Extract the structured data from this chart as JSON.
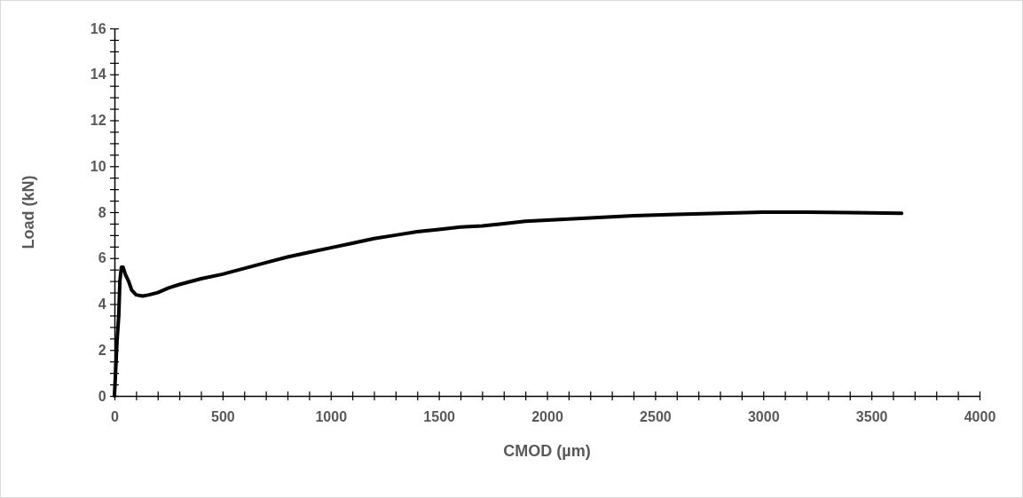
{
  "chart_data": {
    "type": "line",
    "xlabel": "CMOD (µm)",
    "ylabel": "Load (kN)",
    "xlim": [
      0,
      4000
    ],
    "ylim": [
      0,
      16
    ],
    "xticks": [
      0,
      {
        "value": 100,
        "label": null
      },
      {
        "value": 200,
        "label": null
      },
      {
        "value": 300,
        "label": null
      },
      {
        "value": 400,
        "label": null
      },
      500,
      {
        "value": 600,
        "label": null
      },
      {
        "value": 700,
        "label": null
      },
      {
        "value": 800,
        "label": null
      },
      {
        "value": 900,
        "label": null
      },
      1000,
      {
        "value": 1100,
        "label": null
      },
      {
        "value": 1200,
        "label": null
      },
      {
        "value": 1300,
        "label": null
      },
      {
        "value": 1400,
        "label": null
      },
      1500,
      {
        "value": 1600,
        "label": null
      },
      {
        "value": 1700,
        "label": null
      },
      {
        "value": 1800,
        "label": null
      },
      {
        "value": 1900,
        "label": null
      },
      2000,
      {
        "value": 2100,
        "label": null
      },
      {
        "value": 2200,
        "label": null
      },
      {
        "value": 2300,
        "label": null
      },
      {
        "value": 2400,
        "label": null
      },
      2500,
      {
        "value": 2600,
        "label": null
      },
      {
        "value": 2700,
        "label": null
      },
      {
        "value": 2800,
        "label": null
      },
      {
        "value": 2900,
        "label": null
      },
      3000,
      {
        "value": 3100,
        "label": null
      },
      {
        "value": 3200,
        "label": null
      },
      {
        "value": 3300,
        "label": null
      },
      {
        "value": 3400,
        "label": null
      },
      3500,
      {
        "value": 3600,
        "label": null
      },
      {
        "value": 3700,
        "label": null
      },
      {
        "value": 3800,
        "label": null
      },
      {
        "value": 3900,
        "label": null
      },
      4000
    ],
    "yticks": [
      0,
      {
        "value": 0.5,
        "label": null
      },
      {
        "value": 1,
        "label": null
      },
      {
        "value": 1.5,
        "label": null
      },
      2,
      {
        "value": 2.5,
        "label": null
      },
      {
        "value": 3,
        "label": null
      },
      {
        "value": 3.5,
        "label": null
      },
      4,
      {
        "value": 4.5,
        "label": null
      },
      {
        "value": 5,
        "label": null
      },
      {
        "value": 5.5,
        "label": null
      },
      6,
      {
        "value": 6.5,
        "label": null
      },
      {
        "value": 7,
        "label": null
      },
      {
        "value": 7.5,
        "label": null
      },
      8,
      {
        "value": 8.5,
        "label": null
      },
      {
        "value": 9,
        "label": null
      },
      {
        "value": 9.5,
        "label": null
      },
      10,
      {
        "value": 10.5,
        "label": null
      },
      {
        "value": 11,
        "label": null
      },
      {
        "value": 11.5,
        "label": null
      },
      12,
      {
        "value": 12.5,
        "label": null
      },
      {
        "value": 13,
        "label": null
      },
      {
        "value": 13.5,
        "label": null
      },
      14,
      {
        "value": 14.5,
        "label": null
      },
      {
        "value": 15,
        "label": null
      },
      {
        "value": 15.5,
        "label": null
      },
      16
    ],
    "grid": false,
    "marker": "none",
    "line_style": "solid",
    "series": [
      {
        "color": "#000000",
        "x": [
          0,
          5,
          12,
          20,
          25,
          32,
          40,
          50,
          65,
          80,
          100,
          130,
          160,
          200,
          250,
          300,
          400,
          500,
          600,
          700,
          800,
          900,
          1000,
          1100,
          1200,
          1300,
          1400,
          1500,
          1600,
          1700,
          1800,
          1900,
          2000,
          2200,
          2400,
          2600,
          2800,
          3000,
          3200,
          3400,
          3640
        ],
        "values": [
          0,
          1,
          2.4,
          3.5,
          5.0,
          5.6,
          5.6,
          5.3,
          5.0,
          4.6,
          4.4,
          4.35,
          4.4,
          4.5,
          4.7,
          4.85,
          5.1,
          5.3,
          5.55,
          5.8,
          6.05,
          6.25,
          6.45,
          6.65,
          6.85,
          7.0,
          7.15,
          7.25,
          7.35,
          7.4,
          7.5,
          7.6,
          7.65,
          7.75,
          7.85,
          7.9,
          7.95,
          8.0,
          8.0,
          7.98,
          7.95
        ]
      }
    ]
  }
}
